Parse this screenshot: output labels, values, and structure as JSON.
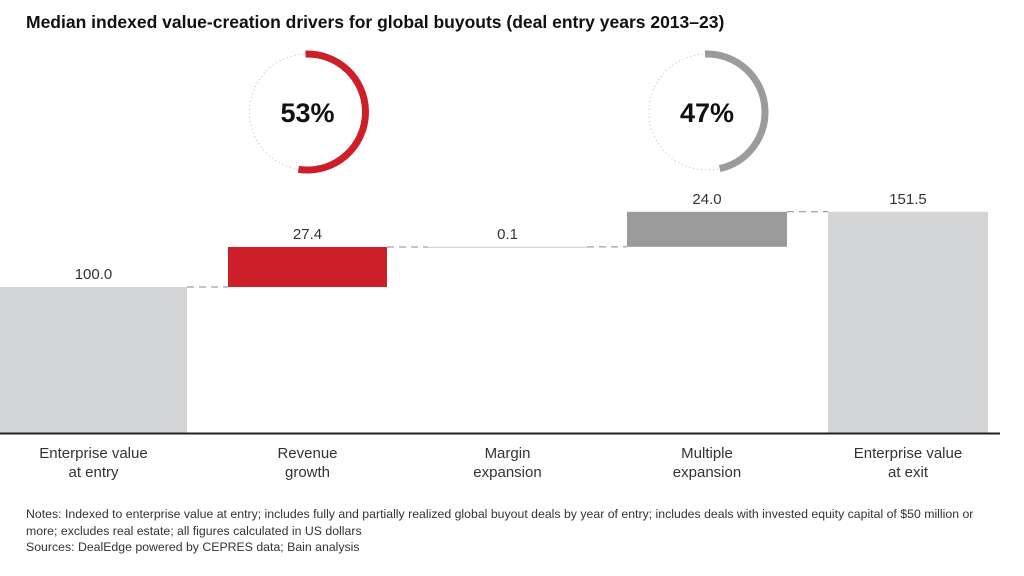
{
  "chart_data": {
    "type": "waterfall",
    "title": "Median indexed value-creation drivers for global buyouts (deal entry years 2013–23)",
    "categories": [
      "Enterprise value\nat entry",
      "Revenue\ngrowth",
      "Margin\nexpansion",
      "Multiple\nexpansion",
      "Enterprise value\nat exit"
    ],
    "values": [
      100.0,
      27.4,
      0.1,
      24.0,
      151.5
    ],
    "value_labels": [
      "100.0",
      "27.4",
      "0.1",
      "24.0",
      "151.5"
    ],
    "kinds": [
      "total",
      "delta",
      "delta",
      "delta",
      "total"
    ],
    "colors": [
      "#d4d5d6",
      "#cc1f2a",
      "#cfcfcf",
      "#9b9b9b",
      "#d4d5d6"
    ],
    "ylim": [
      0,
      160
    ],
    "donuts": [
      {
        "label": "53%",
        "value": 0.53,
        "color": "#cc1f2a",
        "over": 1
      },
      {
        "label": "47%",
        "value": 0.47,
        "color": "#9b9b9b",
        "over": 3
      }
    ]
  },
  "notes": "Notes: Indexed to enterprise value at entry; includes fully and partially realized global buyout deals by year of entry; includes deals with invested equity capital of $50 million or more; excludes real estate; all figures calculated in US dollars",
  "sources": "Sources: DealEdge powered by CEPRES data; Bain analysis"
}
